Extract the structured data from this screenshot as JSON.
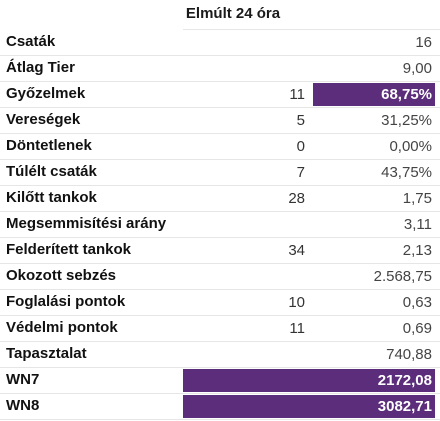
{
  "header": {
    "title": "Elmúlt 24 óra"
  },
  "colors": {
    "highlight_bg": "#5c2d7a",
    "highlight_text": "#ffffff",
    "divider": "#e6e6e6"
  },
  "rows": [
    {
      "label": "Csaták",
      "count": "",
      "value": "16"
    },
    {
      "label": "Átlag Tier",
      "count": "",
      "value": "9,00"
    },
    {
      "label": "Győzelmek",
      "count": "11",
      "value": "68,75%"
    },
    {
      "label": "Vereségek",
      "count": "5",
      "value": "31,25%"
    },
    {
      "label": "Döntetlenek",
      "count": "0",
      "value": "0,00%"
    },
    {
      "label": "Túlélt csaták",
      "count": "7",
      "value": "43,75%"
    },
    {
      "label": "Kilőtt tankok",
      "count": "28",
      "value": "1,75"
    },
    {
      "label": "Megsemmisítési arány",
      "count": "",
      "value": "3,11"
    },
    {
      "label": "Felderített tankok",
      "count": "34",
      "value": "2,13"
    },
    {
      "label": "Okozott sebzés",
      "count": "",
      "value": "2.568,75"
    },
    {
      "label": "Foglalási pontok",
      "count": "10",
      "value": "0,63"
    },
    {
      "label": "Védelmi pontok",
      "count": "11",
      "value": "0,69"
    },
    {
      "label": "Tapasztalat",
      "count": "",
      "value": "740,88"
    },
    {
      "label": "WN7",
      "count": "",
      "value": "2172,08"
    },
    {
      "label": "WN8",
      "count": "",
      "value": "3082,71"
    }
  ]
}
